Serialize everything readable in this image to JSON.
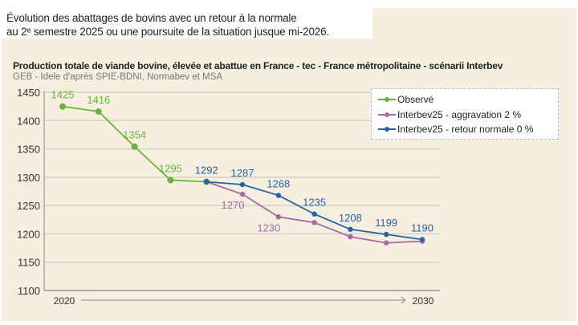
{
  "header": {
    "line1": "Évolution des abattages de bovins avec un retour à la normale",
    "line2": "au 2ᵉ semestre 2025 ou une poursuite de la situation jusque mi-2026."
  },
  "chart_data": {
    "type": "line",
    "title": "Production totale de viande bovine, élevée et abattue en France - tec - France métropolitaine - scénarii Interbev",
    "subtitle": "GEB - Idele d'après SPIE-BDNI, Normabev et MSA",
    "xlabel_start": "2020",
    "xlabel_end": "2030",
    "ylim": [
      1100,
      1450
    ],
    "yticks": [
      1100,
      1150,
      1200,
      1250,
      1300,
      1350,
      1400,
      1450
    ],
    "grid": true,
    "legend_position": "top-right",
    "series": [
      {
        "name": "Observé",
        "color": "#6ab43e",
        "x": [
          0,
          1,
          2,
          3,
          4
        ],
        "values": [
          1425,
          1416,
          1354,
          1295,
          1292
        ],
        "labels": [
          "1425",
          "1416",
          "1354",
          "1295",
          ""
        ]
      },
      {
        "name": "Interbev25 - aggravation 2 %",
        "color": "#a7699f",
        "x": [
          4,
          5,
          6,
          7,
          8,
          9,
          10
        ],
        "values": [
          1292,
          1270,
          1230,
          1220,
          1195,
          1184,
          1187
        ],
        "labels": [
          "",
          "1270",
          "1230",
          "",
          "",
          "",
          ""
        ]
      },
      {
        "name": "Interbev25 - retour normale 0 %",
        "color": "#2563a8",
        "x": [
          4,
          5,
          6,
          7,
          8,
          9,
          10
        ],
        "values": [
          1292,
          1287,
          1268,
          1235,
          1208,
          1199,
          1190
        ],
        "labels": [
          "1292",
          "1287",
          "1268",
          "1235",
          "1208",
          "1199",
          "1190"
        ]
      }
    ]
  }
}
